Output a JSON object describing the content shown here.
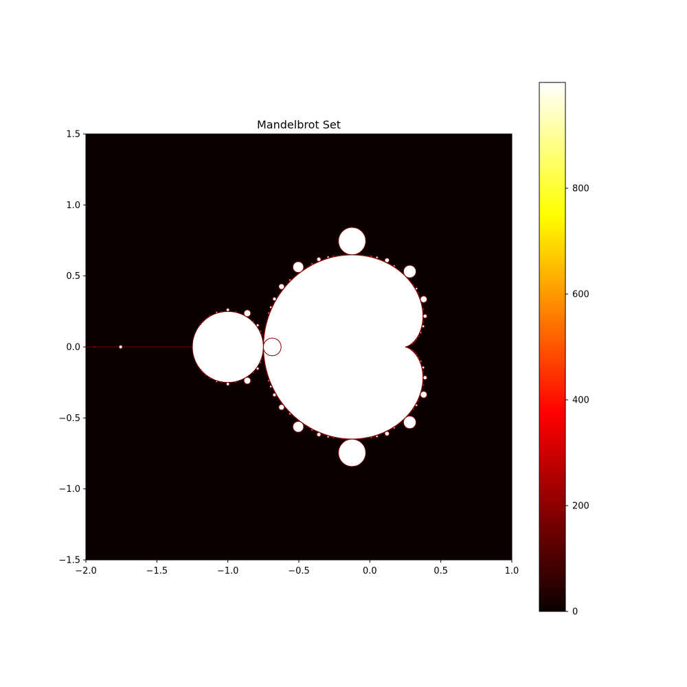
{
  "chart_data": {
    "type": "heatmap",
    "title": "Mandelbrot Set",
    "xlabel": "",
    "ylabel": "",
    "xlim": [
      -2.0,
      1.0
    ],
    "ylim": [
      -1.5,
      1.5
    ],
    "x_ticks": [
      {
        "value": -2.0,
        "label": "−2.0"
      },
      {
        "value": -1.5,
        "label": "−1.5"
      },
      {
        "value": -1.0,
        "label": "−1.0"
      },
      {
        "value": -0.5,
        "label": "−0.5"
      },
      {
        "value": 0.0,
        "label": "0.0"
      },
      {
        "value": 0.5,
        "label": "0.5"
      },
      {
        "value": 1.0,
        "label": "1.0"
      }
    ],
    "y_ticks": [
      {
        "value": 1.5,
        "label": "1.5"
      },
      {
        "value": 1.0,
        "label": "1.0"
      },
      {
        "value": 0.5,
        "label": "0.5"
      },
      {
        "value": 0.0,
        "label": "0.0"
      },
      {
        "value": -0.5,
        "label": "−0.5"
      },
      {
        "value": -1.0,
        "label": "−1.0"
      },
      {
        "value": -1.5,
        "label": "−1.5"
      }
    ],
    "colormap": "hot",
    "colorbar": {
      "range": [
        0,
        1000
      ],
      "ticks": [
        {
          "value": 0,
          "label": "0"
        },
        {
          "value": 200,
          "label": "200"
        },
        {
          "value": 400,
          "label": "400"
        },
        {
          "value": 600,
          "label": "600"
        },
        {
          "value": 800,
          "label": "800"
        }
      ]
    },
    "max_iterations": 1000,
    "grid": false,
    "colors": {
      "background": "#ffffff",
      "axes_edge": "#000000",
      "outside_set": "#0b0000",
      "inside_set": "#ffffff"
    }
  }
}
